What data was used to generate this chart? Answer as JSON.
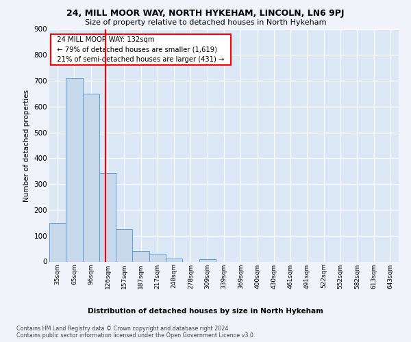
{
  "title": "24, MILL MOOR WAY, NORTH HYKEHAM, LINCOLN, LN6 9PJ",
  "subtitle": "Size of property relative to detached houses in North Hykeham",
  "xlabel": "Distribution of detached houses by size in North Hykeham",
  "ylabel": "Number of detached properties",
  "categories": [
    "35sqm",
    "65sqm",
    "96sqm",
    "126sqm",
    "157sqm",
    "187sqm",
    "217sqm",
    "248sqm",
    "278sqm",
    "309sqm",
    "339sqm",
    "369sqm",
    "400sqm",
    "430sqm",
    "461sqm",
    "491sqm",
    "522sqm",
    "552sqm",
    "582sqm",
    "613sqm",
    "643sqm"
  ],
  "values": [
    150,
    712,
    651,
    344,
    127,
    40,
    30,
    12,
    0,
    8,
    0,
    0,
    0,
    0,
    0,
    0,
    0,
    0,
    0,
    0,
    0
  ],
  "bar_color": "#c9d9ec",
  "bar_edge_color": "#5b9bd5",
  "vline_position": 2.88,
  "annotation_text": "  24 MILL MOOR WAY: 132sqm  \n  ← 79% of detached houses are smaller (1,619)  \n  21% of semi-detached houses are larger (431) →  ",
  "ylim": [
    0,
    900
  ],
  "yticks": [
    0,
    100,
    200,
    300,
    400,
    500,
    600,
    700,
    800,
    900
  ],
  "fig_background_color": "#f0f4fa",
  "plot_background_color": "#dce8f5",
  "grid_color": "#ffffff",
  "footer_line1": "Contains HM Land Registry data © Crown copyright and database right 2024.",
  "footer_line2": "Contains public sector information licensed under the Open Government Licence v3.0."
}
